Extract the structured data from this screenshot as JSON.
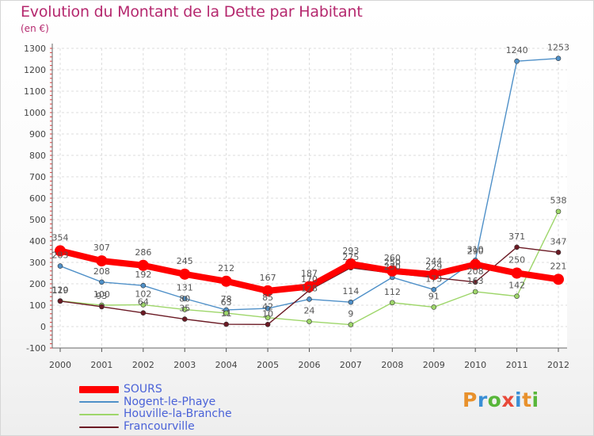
{
  "title": "Evolution du Montant de la Dette par Habitant",
  "subtitle": "(en €)",
  "logo": {
    "letters": [
      "P",
      "r",
      "o",
      "x",
      "i",
      "t",
      "i"
    ],
    "colors": [
      "#e8912c",
      "#3a8fd6",
      "#58b63a",
      "#e84a3a",
      "#3a8fd6",
      "#e8912c",
      "#58b63a"
    ]
  },
  "chart_data": {
    "type": "line",
    "title": "Evolution du Montant de la Dette par Habitant",
    "ylabel": "(en €)",
    "x": [
      "2000",
      "2001",
      "2002",
      "2003",
      "2004",
      "2005",
      "2006",
      "2007",
      "2008",
      "2009",
      "2010",
      "2011",
      "2012"
    ],
    "ylim": [
      -100,
      1300
    ],
    "yticks": [
      "-100",
      "0",
      "100",
      "200",
      "300",
      "400",
      "500",
      "600",
      "700",
      "800",
      "900",
      "1000",
      "1100",
      "1200",
      "1300"
    ],
    "grid": true,
    "legend": "bottom-left",
    "series": [
      {
        "name": "SOURS",
        "color": "#ff0000",
        "values": [
          354,
          307,
          286,
          245,
          212,
          167,
          187,
          293,
          260,
          244,
          290,
          250,
          221
        ],
        "labels": [
          "354",
          "307",
          "286",
          "245",
          "212",
          "167",
          "187",
          "293",
          "260",
          "244",
          "290",
          "250",
          "221"
        ]
      },
      {
        "name": "Nogent-le-Phaye",
        "color": "#4f90c8",
        "values": [
          283,
          208,
          192,
          131,
          78,
          85,
          128,
          114,
          230,
          173,
          310,
          1240,
          1253
        ],
        "labels": [
          "283",
          "208",
          "192",
          "131",
          "78",
          "85",
          "128",
          "114",
          "230",
          "173",
          "310",
          "1240",
          "1253"
        ]
      },
      {
        "name": "Houville-la-Branche",
        "color": "#9ed66a",
        "values": [
          120,
          100,
          102,
          80,
          63,
          42,
          24,
          9,
          112,
          91,
          163,
          142,
          538
        ],
        "labels": [
          "120",
          "100",
          "102",
          "80",
          "63",
          "42",
          "24",
          "9",
          "112",
          "91",
          "163",
          "142",
          "538"
        ]
      },
      {
        "name": "Francourville",
        "color": "#6b1a24",
        "values": [
          119,
          93,
          64,
          35,
          11,
          10,
          170,
          275,
          250,
          229,
          208,
          371,
          347
        ],
        "labels": [
          "119",
          "93",
          "64",
          "35",
          "11",
          "10",
          "170",
          "275",
          "250",
          "229",
          "208",
          "371",
          "347"
        ]
      }
    ]
  }
}
